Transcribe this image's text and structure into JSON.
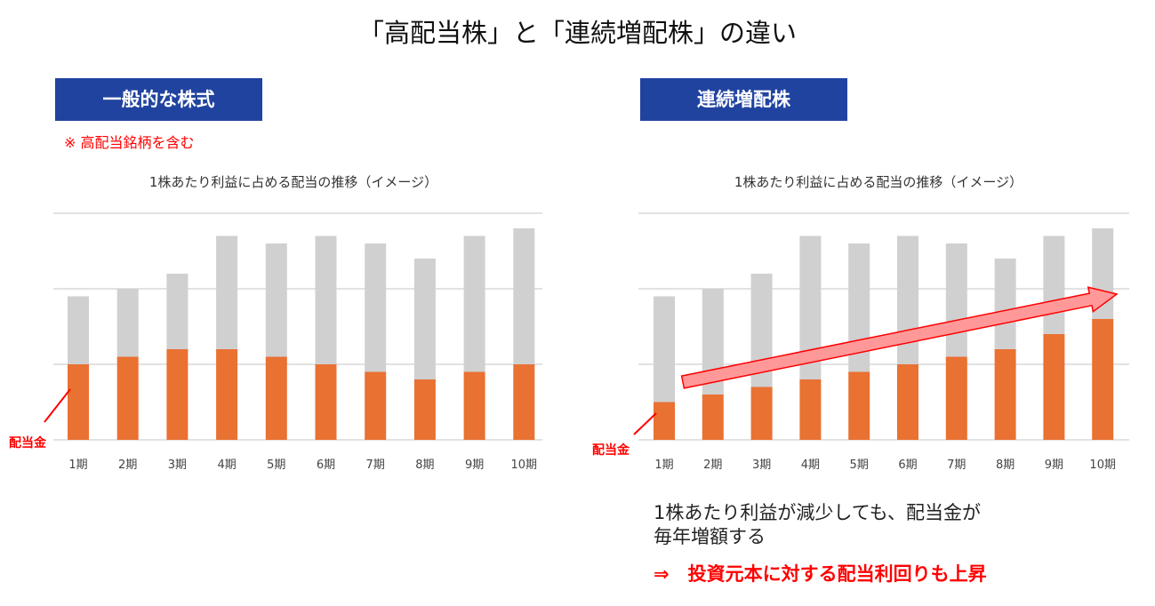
{
  "title": "「高配当株」と「連続増配株」の違い",
  "left_panel": {
    "badge": "一般的な株式",
    "note": "※ 高配当銘柄を含む"
  },
  "right_panel": {
    "badge": "連続増配株",
    "summary_line1": "1株あたり利益が減少しても、配当金が",
    "summary_line2": "毎年増額する",
    "conclusion": "⇒　投資元本に対する配当利回りも上昇"
  },
  "colors": {
    "dividend": "#E97132",
    "eps_remainder": "#D0D0D0",
    "badge": "#2143A0",
    "accent_red": "#FF0000",
    "arrow_fill": "#FF9999"
  },
  "chart_data": [
    {
      "type": "bar",
      "stacked": true,
      "title": "1株あたり利益に占める配当の推移（イメージ）",
      "categories": [
        "1期",
        "2期",
        "3期",
        "4期",
        "5期",
        "6期",
        "7期",
        "8期",
        "9期",
        "10期"
      ],
      "series": [
        {
          "name": "配当金",
          "values": [
            1.0,
            1.1,
            1.2,
            1.2,
            1.1,
            1.0,
            0.9,
            0.8,
            0.9,
            1.0
          ]
        },
        {
          "values": [
            0.9,
            0.9,
            1.0,
            1.5,
            1.5,
            1.7,
            1.7,
            1.6,
            1.8,
            1.8
          ]
        }
      ],
      "ylim": [
        0,
        3
      ],
      "grid": true,
      "annotation": "配当金"
    },
    {
      "type": "bar",
      "stacked": true,
      "title": "1株あたり利益に占める配当の推移（イメージ）",
      "categories": [
        "1期",
        "2期",
        "3期",
        "4期",
        "5期",
        "6期",
        "7期",
        "8期",
        "9期",
        "10期"
      ],
      "series": [
        {
          "name": "配当金",
          "values": [
            0.5,
            0.6,
            0.7,
            0.8,
            0.9,
            1.0,
            1.1,
            1.2,
            1.4,
            1.6
          ]
        },
        {
          "values": [
            1.4,
            1.4,
            1.5,
            1.9,
            1.7,
            1.7,
            1.5,
            1.2,
            1.3,
            1.2
          ]
        }
      ],
      "ylim": [
        0,
        3
      ],
      "grid": true,
      "annotation": "配当金",
      "trend_arrow": "rising"
    }
  ]
}
